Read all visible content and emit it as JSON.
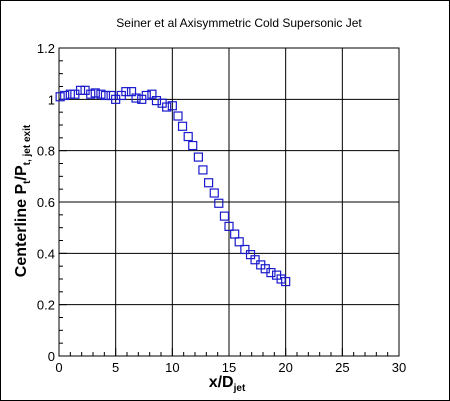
{
  "chart_data": {
    "type": "scatter",
    "title": "Seiner et al Axisymmetric Cold Supersonic Jet",
    "xlabel": {
      "main": "x/D",
      "sub": "jet"
    },
    "ylabel": {
      "main": "Centerline P",
      "sub1": "t",
      "mid": "/P",
      "sub2": "t, jet exit"
    },
    "xlim": [
      0,
      30
    ],
    "ylim": [
      0,
      1.2
    ],
    "x_ticks": [
      "0",
      "5",
      "10",
      "15",
      "20",
      "25",
      "30"
    ],
    "y_ticks": [
      "0",
      "0.2",
      "0.4",
      "0.6",
      "0.8",
      "1",
      "1.2"
    ],
    "grid": true,
    "marker": "square-open",
    "series": [
      {
        "color": "#1a1acc",
        "x": [
          0.1,
          0.5,
          1.0,
          1.4,
          1.9,
          2.3,
          2.8,
          3.2,
          3.7,
          4.1,
          4.6,
          5.0,
          5.5,
          5.9,
          6.4,
          6.8,
          7.3,
          7.7,
          8.2,
          8.6,
          9.1,
          9.5,
          10.0,
          10.5,
          10.9,
          11.4,
          11.8,
          12.3,
          12.7,
          13.2,
          13.7,
          14.1,
          14.6,
          15.0,
          15.5,
          15.9,
          16.4,
          16.9,
          17.3,
          17.8,
          18.2,
          18.7,
          19.2,
          19.6,
          20.0
        ],
        "y": [
          1.01,
          1.015,
          1.02,
          1.02,
          1.035,
          1.035,
          1.02,
          1.025,
          1.02,
          1.015,
          1.015,
          1.0,
          1.015,
          1.03,
          1.03,
          1.005,
          1.0,
          1.015,
          1.02,
          0.995,
          0.985,
          0.97,
          0.975,
          0.935,
          0.895,
          0.855,
          0.82,
          0.775,
          0.725,
          0.675,
          0.635,
          0.595,
          0.545,
          0.505,
          0.475,
          0.445,
          0.415,
          0.395,
          0.375,
          0.355,
          0.34,
          0.325,
          0.315,
          0.3,
          0.29
        ]
      }
    ]
  }
}
